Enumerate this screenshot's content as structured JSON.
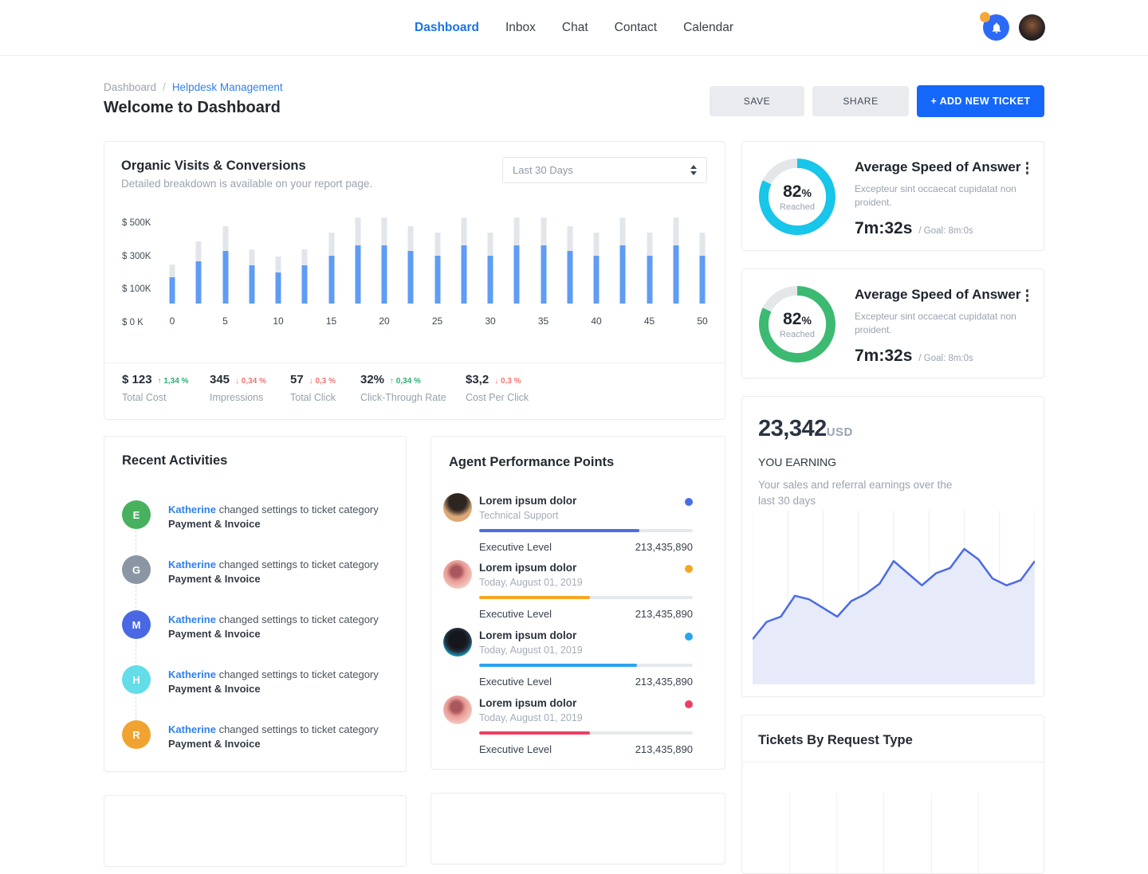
{
  "nav": {
    "items": [
      {
        "label": "Dashboard",
        "active": true
      },
      {
        "label": "Inbox",
        "active": false
      },
      {
        "label": "Chat",
        "active": false
      },
      {
        "label": "Contact",
        "active": false
      },
      {
        "label": "Calendar",
        "active": false
      }
    ]
  },
  "icons": {
    "notification": "bell-icon",
    "more_options": "kebab-icon",
    "select_arrows": "up-down-spinner-icon"
  },
  "header": {
    "breadcrumb": {
      "root": "Dashboard",
      "separator": "/",
      "current": "Helpdesk Management"
    },
    "title": "Welcome to Dashboard",
    "save_label": "SAVE",
    "share_label": "SHARE",
    "add_ticket_label": "+ ADD NEW TICKET"
  },
  "organic": {
    "title": "Organic Visits & Conversions",
    "subtitle": "Detailed breakdown is available on your report page.",
    "range_value": "Last 30 Days",
    "chart_data": {
      "type": "bar",
      "title": "Organic Visits & Conversions",
      "x": [
        0,
        2.5,
        5,
        7.5,
        10,
        12.5,
        15,
        17.5,
        20,
        22.5,
        25,
        27.5,
        30,
        32.5,
        35,
        37.5,
        40,
        42.5,
        45,
        47.5,
        50
      ],
      "x_ticks": [
        "0",
        "5",
        "10",
        "15",
        "20",
        "25",
        "30",
        "35",
        "40",
        "45",
        "50"
      ],
      "y_ticks": [
        "$ 500K",
        "$ 300K",
        "$ 100K",
        "$ 0 K"
      ],
      "ylim": [
        0,
        520
      ],
      "grid": false,
      "series": [
        {
          "name": "total-visits",
          "color": "#e2e6ea",
          "values": [
            230,
            370,
            460,
            320,
            280,
            320,
            420,
            510,
            510,
            460,
            420,
            510,
            420,
            510,
            510,
            460,
            420,
            510,
            420,
            510,
            420
          ]
        },
        {
          "name": "conversions",
          "color": "#5f9cf3",
          "values": [
            155,
            250,
            310,
            225,
            185,
            225,
            285,
            345,
            345,
            310,
            285,
            345,
            285,
            345,
            345,
            310,
            285,
            345,
            285,
            345,
            285
          ]
        }
      ]
    },
    "stats": [
      {
        "value": "$ 123",
        "change": "1,34 %",
        "direction": "up",
        "label": "Total Cost"
      },
      {
        "value": "345",
        "change": "0,34 %",
        "direction": "down",
        "label": "Impressions"
      },
      {
        "value": "57",
        "change": "0,3 %",
        "direction": "down",
        "label": "Total Click"
      },
      {
        "value": "32%",
        "change": "0,34 %",
        "direction": "up",
        "label": "Click-Through Rate"
      },
      {
        "value": "$3,2",
        "change": "0,3 %",
        "direction": "down",
        "label": "Cost Per Click"
      }
    ]
  },
  "speed_cards": [
    {
      "percent": 82,
      "percent_label": "82",
      "reached_label": "Reached",
      "title": "Average Speed of Answer",
      "desc": "Excepteur sint occaecat cupidatat non proident.",
      "time": "7m:32s",
      "goal": "/ Goal: 8m:0s",
      "color": "#17c6e8"
    },
    {
      "percent": 82,
      "percent_label": "82",
      "reached_label": "Reached",
      "title": "Average Speed of Answer",
      "desc": "Excepteur sint occaecat cupidatat non proident.",
      "time": "7m:32s",
      "goal": "/ Goal: 8m:0s",
      "color": "#3dba72"
    }
  ],
  "recent": {
    "title": "Recent Activities",
    "items": [
      {
        "initial": "E",
        "color": "#47b160",
        "user": "Katherine",
        "action": " changed settings to ticket category",
        "category": "Payment & Invoice"
      },
      {
        "initial": "G",
        "color": "#8b96a5",
        "user": "Katherine",
        "action": " changed settings to ticket category",
        "category": "Payment & Invoice"
      },
      {
        "initial": "M",
        "color": "#4a67e4",
        "user": "Katherine",
        "action": " changed settings to ticket category",
        "category": "Payment & Invoice"
      },
      {
        "initial": "H",
        "color": "#63dde8",
        "user": "Katherine",
        "action": " changed settings to ticket category",
        "category": "Payment & Invoice"
      },
      {
        "initial": "R",
        "color": "#f0a331",
        "user": "Katherine",
        "action": " changed settings to ticket category",
        "category": "Payment & Invoice"
      }
    ]
  },
  "agents": {
    "title": "Agent Performance Points",
    "items": [
      {
        "name": "Lorem ipsum dolor",
        "subtitle": "Technical Support",
        "dot_color": "#4a6ee0",
        "progress": 75,
        "bar_color": "#4a6ee0",
        "level_label": "Executive Level",
        "points": "213,435,890",
        "avatar": "afro-camera"
      },
      {
        "name": "Lorem ipsum dolor",
        "subtitle": "Today, August 01, 2019",
        "dot_color": "#f5a623",
        "progress": 52,
        "bar_color": "#f5a623",
        "level_label": "Executive Level",
        "points": "213,435,890",
        "avatar": "rose"
      },
      {
        "name": "Lorem ipsum dolor",
        "subtitle": "Today, August 01, 2019",
        "dot_color": "#29a3ef",
        "progress": 74,
        "bar_color": "#29a3ef",
        "level_label": "Executive Level",
        "points": "213,435,890",
        "avatar": "sunglasses"
      },
      {
        "name": "Lorem ipsum dolor",
        "subtitle": "Today, August 01, 2019",
        "dot_color": "#ee3f63",
        "progress": 52,
        "bar_color": "#ee3f63",
        "level_label": "Executive Level",
        "points": "213,435,890",
        "avatar": "rose"
      }
    ]
  },
  "earning": {
    "amount": "23,342",
    "currency": "USD",
    "label": "YOU EARNING",
    "desc": "Your sales and referral earnings over the last 30 days",
    "chart_data": {
      "type": "area",
      "x": [
        0,
        1,
        2,
        3,
        4,
        5,
        6,
        7,
        8,
        9,
        10,
        11,
        12,
        13,
        14,
        15,
        16,
        17,
        18,
        19,
        20
      ],
      "values": [
        26,
        36,
        39,
        51,
        49,
        44,
        39,
        48,
        52,
        58,
        71,
        64,
        57,
        64,
        67,
        78,
        72,
        61,
        57,
        60,
        71
      ],
      "ylim": [
        0,
        100
      ],
      "line_color": "#4a6be5",
      "fill_color": "#e7ebf9",
      "gridlines": 9,
      "grid_color": "#ededf1",
      "legend": "none"
    }
  },
  "tickets": {
    "title": "Tickets By Request Type"
  }
}
